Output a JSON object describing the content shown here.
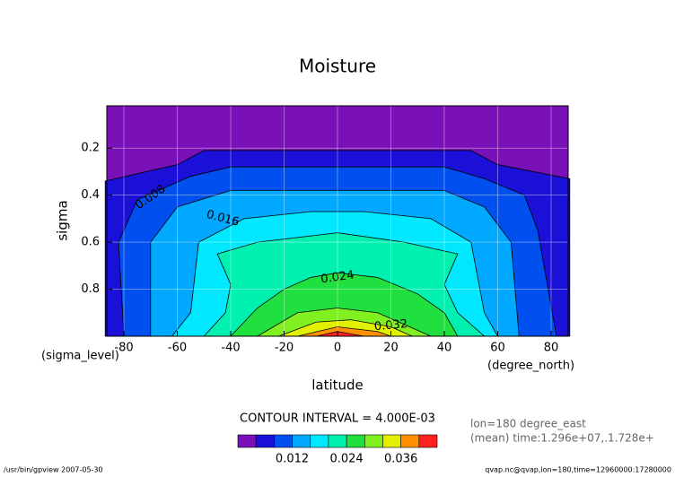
{
  "chart_data": {
    "type": "contour",
    "title": "Moisture",
    "x_label": "latitude",
    "y_label": "sigma",
    "x_unit": "(degree_north)",
    "y_unit": "(sigma_level)",
    "xlim": [
      -86.4,
      86.4
    ],
    "xticks": [
      -80,
      -60,
      -40,
      -20,
      0,
      20,
      40,
      60,
      80
    ],
    "ylim": [
      0.02,
      1.0
    ],
    "y_inverted": true,
    "yticks": [
      0.2,
      0.4,
      0.6,
      0.8
    ],
    "grid": true,
    "levels": [
      0,
      0.004,
      0.008,
      0.012,
      0.016,
      0.02,
      0.024,
      0.028,
      0.032,
      0.036,
      0.04,
      0.044
    ],
    "colors": [
      "#7a10b8",
      "#1a10d8",
      "#0050f0",
      "#00a8ff",
      "#00e8ff",
      "#00f0b0",
      "#20e040",
      "#80f020",
      "#e0f000",
      "#ff9000",
      "#ff2020"
    ],
    "contour_labels": [
      0.008,
      0.016,
      0.024,
      0.032
    ],
    "contour_interval": "CONTOUR INTERVAL = 4.000E-03",
    "colorbar_ticks": [
      0.012,
      0.024,
      0.036
    ],
    "info": [
      "lon=180 degree_east",
      "(mean) time:1.296e+07,.1.728e+"
    ],
    "footer_left": "/usr/bin/gpview  2007-05-30",
    "footer_right": "qvap.nc@qvap,lon=180,time=12960000:17280000"
  }
}
